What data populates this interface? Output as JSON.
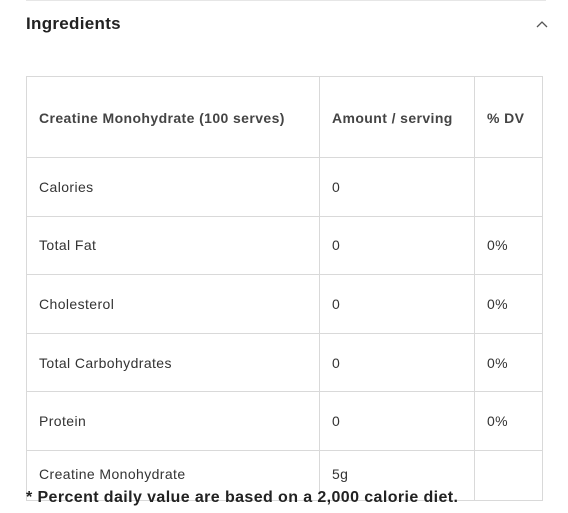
{
  "section": {
    "title": "Ingredients",
    "toggle_icon": "chevron-up-icon"
  },
  "table": {
    "headers": [
      "Creatine Monohydrate (100 serves)",
      "Amount / serving",
      "% DV"
    ],
    "rows": [
      {
        "name": "Calories",
        "amount": "0",
        "dv": ""
      },
      {
        "name": "Total Fat",
        "amount": "0",
        "dv": "0%"
      },
      {
        "name": "Cholesterol",
        "amount": "0",
        "dv": "0%"
      },
      {
        "name": "Total Carbohydrates",
        "amount": "0",
        "dv": "0%"
      },
      {
        "name": "Protein",
        "amount": "0",
        "dv": "0%"
      },
      {
        "name": "Creatine Monohydrate",
        "amount": "5g",
        "dv": ""
      }
    ]
  },
  "footnote": "* Percent daily value are based on a 2,000 calorie diet."
}
